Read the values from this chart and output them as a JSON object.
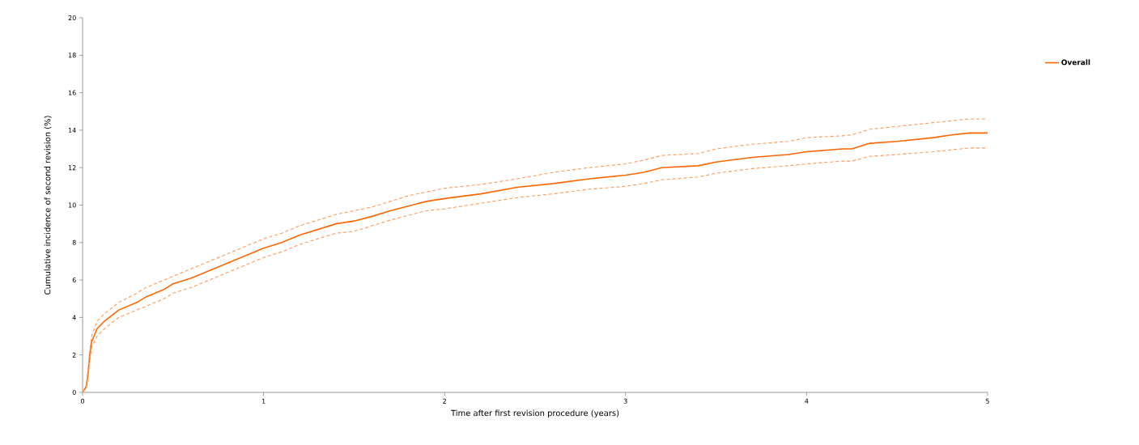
{
  "chart_data": {
    "type": "line",
    "xlabel": "Time after first revision procedure (years)",
    "ylabel": "Cumulative incidence of second revision (%)",
    "x": [
      0,
      0.02,
      0.03,
      0.04,
      0.05,
      0.08,
      0.12,
      0.2,
      0.3,
      0.35,
      0.45,
      0.5,
      0.6,
      0.7,
      0.8,
      0.9,
      1.0,
      1.1,
      1.2,
      1.3,
      1.4,
      1.5,
      1.6,
      1.7,
      1.8,
      1.9,
      2.0,
      2.2,
      2.4,
      2.6,
      2.8,
      3.0,
      3.1,
      3.2,
      3.4,
      3.5,
      3.7,
      3.9,
      4.0,
      4.2,
      4.25,
      4.35,
      4.5,
      4.7,
      4.8,
      4.9,
      5.0
    ],
    "series": [
      {
        "name": "Overall",
        "color": "#ff6600",
        "line_style": "solid",
        "values": [
          0,
          0.3,
          1.0,
          2.0,
          2.7,
          3.4,
          3.8,
          4.4,
          4.8,
          5.1,
          5.5,
          5.8,
          6.1,
          6.5,
          6.9,
          7.3,
          7.7,
          8.0,
          8.4,
          8.7,
          9.0,
          9.15,
          9.4,
          9.7,
          9.95,
          10.2,
          10.35,
          10.6,
          10.95,
          11.15,
          11.4,
          11.6,
          11.75,
          12.0,
          12.1,
          12.3,
          12.55,
          12.7,
          12.85,
          13.0,
          13.0,
          13.3,
          13.4,
          13.6,
          13.75,
          13.85,
          13.85
        ]
      },
      {
        "color": "#ff9955",
        "line_style": "dashed",
        "values": [
          0,
          0.4,
          1.2,
          2.3,
          3.0,
          3.8,
          4.2,
          4.8,
          5.3,
          5.6,
          6.0,
          6.2,
          6.6,
          7.0,
          7.4,
          7.8,
          8.2,
          8.5,
          8.9,
          9.2,
          9.5,
          9.7,
          9.9,
          10.2,
          10.5,
          10.7,
          10.9,
          11.1,
          11.4,
          11.75,
          12.0,
          12.2,
          12.4,
          12.65,
          12.75,
          13.0,
          13.25,
          13.4,
          13.6,
          13.7,
          13.75,
          14.05,
          14.2,
          14.4,
          14.5,
          14.6,
          14.6
        ]
      },
      {
        "color": "#ff9955",
        "line_style": "dashed",
        "values": [
          0,
          0.2,
          0.8,
          1.7,
          2.4,
          3.0,
          3.4,
          4.0,
          4.4,
          4.6,
          5.0,
          5.3,
          5.6,
          6.0,
          6.4,
          6.8,
          7.2,
          7.5,
          7.9,
          8.2,
          8.5,
          8.6,
          8.9,
          9.2,
          9.45,
          9.7,
          9.8,
          10.1,
          10.4,
          10.6,
          10.85,
          11.0,
          11.15,
          11.35,
          11.5,
          11.7,
          11.95,
          12.1,
          12.2,
          12.35,
          12.35,
          12.6,
          12.7,
          12.85,
          12.95,
          13.05,
          13.05
        ]
      }
    ],
    "xlim": [
      0,
      5
    ],
    "xticks": [
      0,
      1,
      2,
      3,
      4,
      5
    ],
    "ylim": [
      0,
      20
    ],
    "yticks": [
      0,
      2,
      4,
      6,
      8,
      10,
      12,
      14,
      16,
      18,
      20
    ],
    "legend": "top right",
    "grid": false,
    "marker": "none"
  }
}
